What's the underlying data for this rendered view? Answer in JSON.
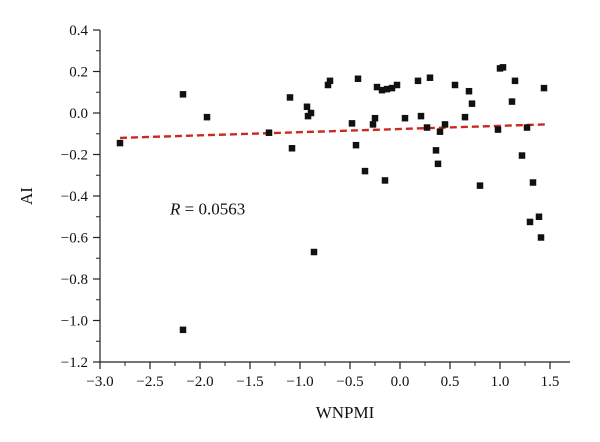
{
  "chart_data": {
    "type": "scatter",
    "title": "",
    "xlabel": "WNPMI",
    "ylabel": "AI",
    "xlim": [
      -3.0,
      1.7
    ],
    "ylim": [
      -1.2,
      0.4
    ],
    "xticks": [
      -3.0,
      -2.5,
      -2.0,
      -1.5,
      -1.0,
      -0.5,
      0.0,
      0.5,
      1.0,
      1.5
    ],
    "xtick_labels": [
      "−3.0",
      "−2.5",
      "−2.0",
      "−1.5",
      "−1.0",
      "−0.5",
      "0.0",
      "0.5",
      "1.0",
      "1.5"
    ],
    "yticks": [
      0.4,
      0.2,
      0.0,
      -0.2,
      -0.4,
      -0.6,
      -0.8,
      -1.0,
      -1.2
    ],
    "ytick_labels": [
      "0.4",
      "0.2",
      "0.0",
      "−0.2",
      "−0.4",
      "−0.6",
      "−0.8",
      "−1.0",
      "−1.2"
    ],
    "grid": false,
    "legend": null,
    "points": [
      {
        "x": -2.8,
        "y": -0.145
      },
      {
        "x": -2.17,
        "y": 0.09
      },
      {
        "x": -2.17,
        "y": -1.045
      },
      {
        "x": -1.93,
        "y": -0.02
      },
      {
        "x": -1.31,
        "y": -0.095
      },
      {
        "x": -1.1,
        "y": 0.075
      },
      {
        "x": -1.08,
        "y": -0.17
      },
      {
        "x": -0.93,
        "y": 0.03
      },
      {
        "x": -0.92,
        "y": -0.015
      },
      {
        "x": -0.89,
        "y": 0.0
      },
      {
        "x": -0.86,
        "y": -0.67
      },
      {
        "x": -0.72,
        "y": 0.135
      },
      {
        "x": -0.7,
        "y": 0.155
      },
      {
        "x": -0.48,
        "y": -0.05
      },
      {
        "x": -0.44,
        "y": -0.155
      },
      {
        "x": -0.42,
        "y": 0.165
      },
      {
        "x": -0.35,
        "y": -0.28
      },
      {
        "x": -0.27,
        "y": -0.055
      },
      {
        "x": -0.25,
        "y": -0.025
      },
      {
        "x": -0.23,
        "y": 0.125
      },
      {
        "x": -0.18,
        "y": 0.11
      },
      {
        "x": -0.15,
        "y": -0.325
      },
      {
        "x": -0.13,
        "y": 0.115
      },
      {
        "x": -0.08,
        "y": 0.12
      },
      {
        "x": -0.03,
        "y": 0.135
      },
      {
        "x": 0.05,
        "y": -0.025
      },
      {
        "x": 0.18,
        "y": 0.155
      },
      {
        "x": 0.21,
        "y": -0.015
      },
      {
        "x": 0.27,
        "y": -0.07
      },
      {
        "x": 0.3,
        "y": 0.17
      },
      {
        "x": 0.36,
        "y": -0.18
      },
      {
        "x": 0.38,
        "y": -0.245
      },
      {
        "x": 0.4,
        "y": -0.09
      },
      {
        "x": 0.45,
        "y": -0.055
      },
      {
        "x": 0.55,
        "y": 0.135
      },
      {
        "x": 0.65,
        "y": -0.02
      },
      {
        "x": 0.69,
        "y": 0.105
      },
      {
        "x": 0.72,
        "y": 0.045
      },
      {
        "x": 0.8,
        "y": -0.35
      },
      {
        "x": 0.98,
        "y": -0.08
      },
      {
        "x": 1.0,
        "y": 0.215
      },
      {
        "x": 1.03,
        "y": 0.22
      },
      {
        "x": 1.12,
        "y": 0.055
      },
      {
        "x": 1.15,
        "y": 0.155
      },
      {
        "x": 1.22,
        "y": -0.205
      },
      {
        "x": 1.27,
        "y": -0.07
      },
      {
        "x": 1.3,
        "y": -0.525
      },
      {
        "x": 1.33,
        "y": -0.335
      },
      {
        "x": 1.39,
        "y": -0.5
      },
      {
        "x": 1.41,
        "y": -0.6
      },
      {
        "x": 1.44,
        "y": 0.12
      }
    ],
    "fit_line": {
      "x": [
        -2.8,
        1.45
      ],
      "y": [
        -0.12,
        -0.055
      ],
      "color": "#cc2a1f",
      "style": "dashed"
    },
    "annotation": {
      "text": "R = 0.0563",
      "x": -2.3,
      "y": -0.49
    },
    "colors": {
      "marker": "#111111",
      "axis": "#222222",
      "fit": "#cc2a1f"
    }
  }
}
